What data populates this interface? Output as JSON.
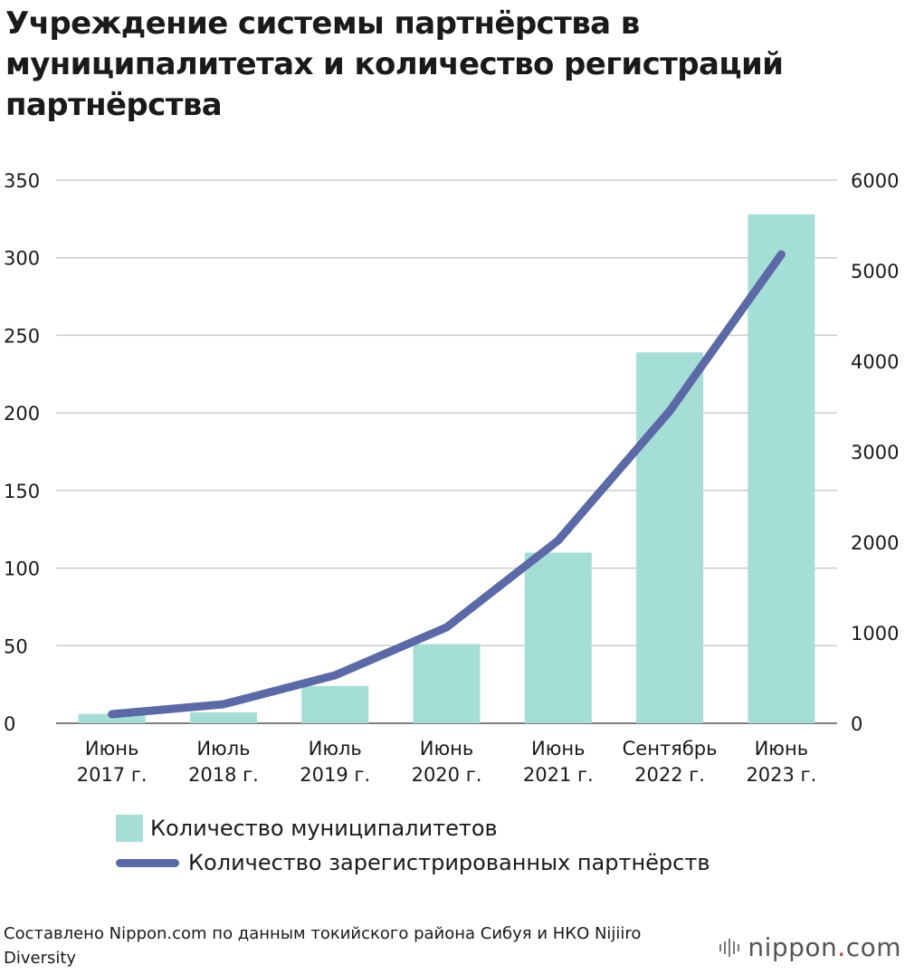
{
  "title": "Учреждение системы партнёрства в муниципалитетах и количество регистраций партнёрства",
  "chart_data": {
    "type": "bar",
    "categories": [
      [
        "Июнь",
        "2017 г."
      ],
      [
        "Июль",
        "2018 г."
      ],
      [
        "Июль",
        "2019 г."
      ],
      [
        "Июнь",
        "2020 г."
      ],
      [
        "Июнь",
        "2021 г."
      ],
      [
        "Сентябрь",
        "2022 г."
      ],
      [
        "Июнь",
        "2023 г."
      ]
    ],
    "series": [
      {
        "name": "Количество муниципалитетов",
        "type": "bar",
        "axis": "left",
        "color": "#a5ddd7",
        "values": [
          6,
          7,
          24,
          51,
          110,
          239,
          328
        ]
      },
      {
        "name": "Количество зарегистрированных партнёрств",
        "type": "line",
        "axis": "right",
        "color": "#5b69a6",
        "values": [
          100,
          210,
          530,
          1060,
          2020,
          3450,
          5180
        ]
      }
    ],
    "y_left": {
      "min": 0,
      "max": 350,
      "ticks": [
        0,
        50,
        100,
        150,
        200,
        250,
        300,
        350
      ]
    },
    "y_right": {
      "min": 0,
      "max": 6000,
      "ticks": [
        0,
        1000,
        2000,
        3000,
        4000,
        5000,
        6000
      ]
    },
    "grid": true,
    "legend_position": "bottom"
  },
  "legend": [
    {
      "label": "Количество муниципалитетов"
    },
    {
      "label": "Количество зарегистрированных партнёрств"
    }
  ],
  "source": "Составлено Nippon.com по данным токийского района Сибуя и НКО Nijiiro Diversity",
  "logo": {
    "name": "nippon",
    "dot": ".",
    "suffix": "com"
  }
}
